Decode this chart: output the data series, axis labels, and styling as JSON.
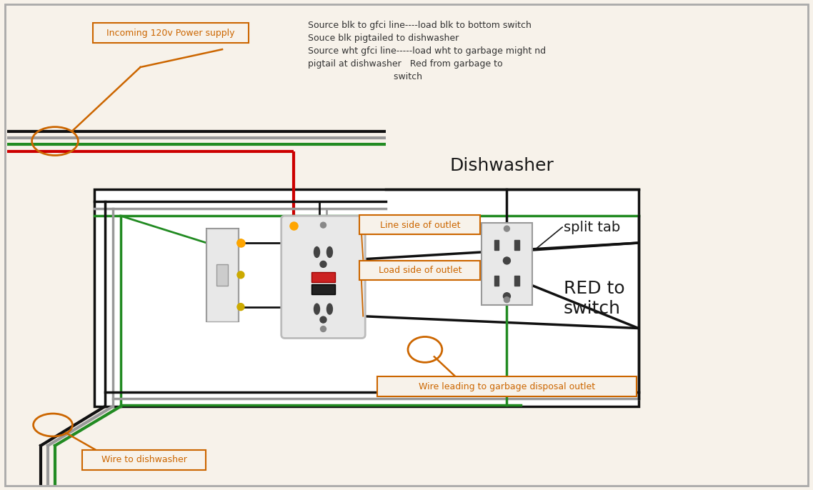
{
  "bg_color": "#f7f2ea",
  "wire_black": "#111111",
  "wire_white": "#999999",
  "wire_green": "#228B22",
  "wire_red": "#cc0000",
  "annotation_color": "#cc6600",
  "annotation_bg": "#f7f2ea",
  "notes_text": "Source blk to gfci line----load blk to bottom switch\nSouce blk pigtailed to dishwasher\nSource wht gfci line-----load wht to garbage might nd\npigtail at dishwasher   Red from garbage to\n                              switch",
  "label_incoming": "Incoming 120v Power supply",
  "label_dishwasher_wire": "Wire to dishwasher",
  "label_garbage_wire": "Wire leading to garbage disposal outlet",
  "label_line_side": "Line side of outlet",
  "label_load_side": "Load side of outlet",
  "label_split_tab": "split tab",
  "label_dishwasher": "Dishwasher",
  "label_red_switch": "RED to\nswitch"
}
